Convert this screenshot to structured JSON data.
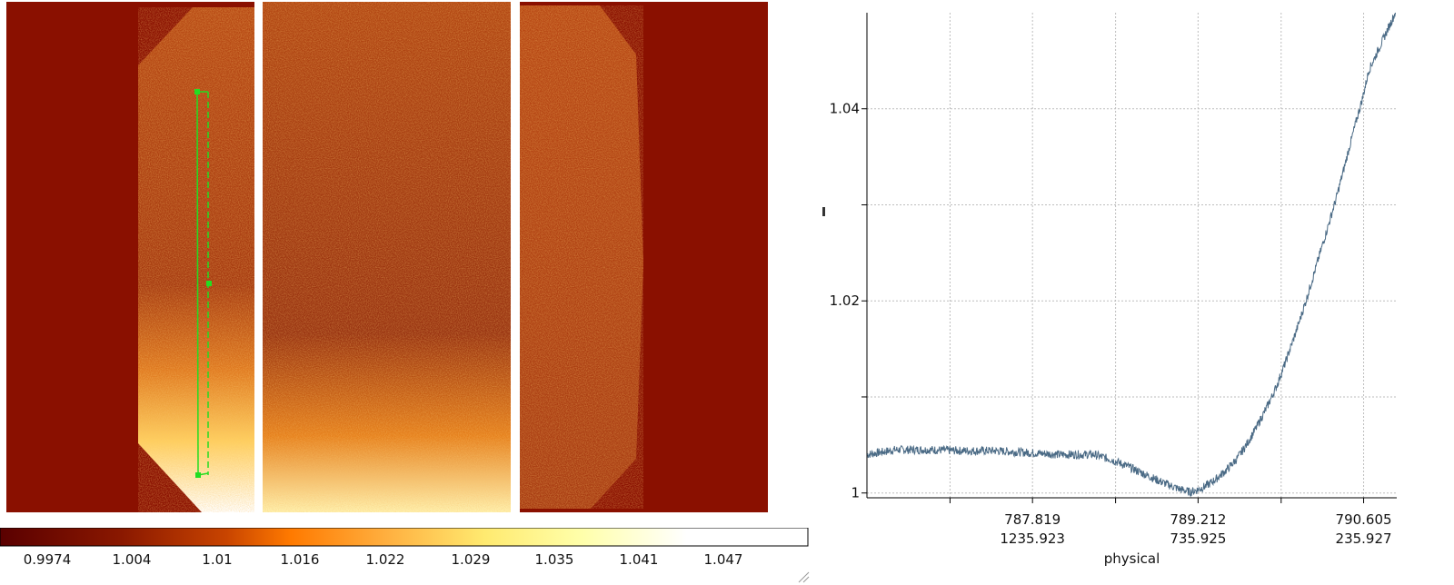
{
  "image_viewer": {
    "colormap": "heat",
    "region": {
      "shape": "projection",
      "color": "#22dd22"
    },
    "colors": {
      "background": "#8a1000",
      "chip_base": "#a83a10",
      "gap": "#ffffff",
      "region": "#22dd22"
    }
  },
  "colorbar": {
    "labels": [
      "0.9974",
      "1.004",
      "1.01",
      "1.016",
      "1.022",
      "1.029",
      "1.035",
      "1.041",
      "1.047"
    ],
    "stops": [
      "#5a0000",
      "#8a1800",
      "#c84400",
      "#ff7a00",
      "#ffb040",
      "#ffea70",
      "#ffffaa",
      "#ffffff"
    ]
  },
  "plot": {
    "line_color": "#4a6a85",
    "xlabel": "physical",
    "x_ticks": [
      {
        "primary": "787.819",
        "secondary": "1235.923"
      },
      {
        "primary": "789.212",
        "secondary": "735.925"
      },
      {
        "primary": "790.605",
        "secondary": "235.927"
      }
    ],
    "y_ticks": [
      "1.04",
      "1.02",
      "1"
    ]
  },
  "chart_data": {
    "type": "line",
    "title": "",
    "xlabel": "physical",
    "ylabel": "",
    "xlim": [
      1735.9,
      135.9
    ],
    "ylim": [
      0.9995,
      1.05
    ],
    "grid": true,
    "x_ticks_secondary": [
      1235.923,
      735.925,
      235.927
    ],
    "x_ticks_primary": [
      787.819,
      789.212,
      790.605
    ],
    "y_ticks": [
      1.0,
      1.02,
      1.04
    ],
    "series": [
      {
        "x": [
          1735,
          1650,
          1550,
          1450,
          1350,
          1250,
          1150,
          1050,
          1000,
          950,
          900,
          850,
          800,
          780,
          760,
          740,
          720,
          700,
          680,
          650,
          620,
          590,
          560,
          530,
          500,
          470,
          440,
          410,
          380,
          350,
          320,
          290,
          260,
          240,
          220,
          200,
          180,
          160,
          140
        ],
        "y": [
          1.004,
          1.0045,
          1.0045,
          1.0044,
          1.0044,
          1.0042,
          1.004,
          1.004,
          1.0035,
          1.0028,
          1.002,
          1.0012,
          1.0005,
          1.0003,
          1.0001,
          1.0003,
          1.0006,
          1.001,
          1.0015,
          1.0024,
          1.0035,
          1.005,
          1.0068,
          1.0088,
          1.011,
          1.0138,
          1.0168,
          1.02,
          1.0235,
          1.027,
          1.0305,
          1.0345,
          1.0385,
          1.041,
          1.044,
          1.0455,
          1.047,
          1.0485,
          1.05
        ]
      }
    ]
  }
}
